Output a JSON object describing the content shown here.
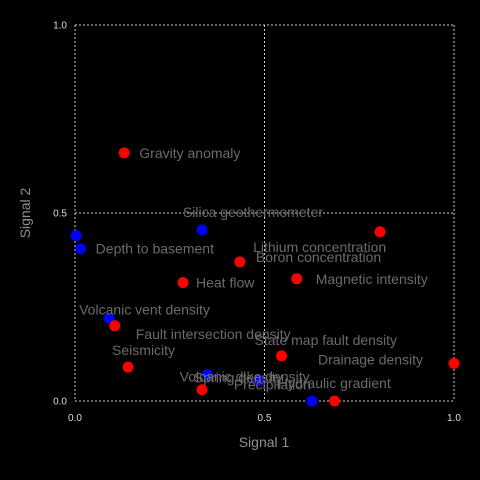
{
  "chart_data": {
    "type": "scatter",
    "title": "",
    "xlabel": "Signal 1",
    "ylabel": "Signal 2",
    "xlim": [
      0,
      1
    ],
    "ylim": [
      0,
      1
    ],
    "x_ticks": [
      "0.0",
      "0.5",
      "1.0"
    ],
    "y_ticks": [
      "0.0",
      "0.5",
      "1.0"
    ],
    "x_tick_values": [
      0,
      0.5,
      1
    ],
    "y_tick_values": [
      0,
      0.5,
      1
    ],
    "grid": true,
    "colors": {
      "red": "#ff0000",
      "blue": "#0000ff",
      "background": "#000000"
    },
    "points": [
      {
        "label": "Gravity anomaly",
        "x": 0.13,
        "y": 0.66,
        "color": "red"
      },
      {
        "label": "Silica geothermometer",
        "x": 0.335,
        "y": 0.455,
        "color": "blue"
      },
      {
        "label": "Depth to basement",
        "x": 0.015,
        "y": 0.405,
        "color": "blue"
      },
      {
        "label": "",
        "x": 0.003,
        "y": 0.44,
        "color": "blue"
      },
      {
        "label": "Lithium concentration",
        "x": 0.805,
        "y": 0.45,
        "color": "red"
      },
      {
        "label": "Boron concentration",
        "x": 0.435,
        "y": 0.37,
        "color": "red"
      },
      {
        "label": "Magnetic intensity",
        "x": 0.585,
        "y": 0.325,
        "color": "red"
      },
      {
        "label": "Heat flow",
        "x": 0.285,
        "y": 0.315,
        "color": "red"
      },
      {
        "label": "Volcanic vent density",
        "x": 0.09,
        "y": 0.22,
        "color": "blue"
      },
      {
        "label": "Fault intersection density",
        "x": 0.105,
        "y": 0.2,
        "color": "red"
      },
      {
        "label": "State map fault density",
        "x": 0.545,
        "y": 0.12,
        "color": "red"
      },
      {
        "label": "Seismicity",
        "x": 0.14,
        "y": 0.09,
        "color": "red"
      },
      {
        "label": "Drainage density",
        "x": 1.0,
        "y": 0.1,
        "color": "red"
      },
      {
        "label": "Volcanic dike density",
        "x": 0.35,
        "y": 0.07,
        "color": "blue"
      },
      {
        "label": "Precipitation",
        "x": 0.485,
        "y": 0.055,
        "color": "blue"
      },
      {
        "label": "Hydraulic gradient",
        "x": 0.625,
        "y": 0.0,
        "color": "blue"
      },
      {
        "label": "Spring density",
        "x": 0.335,
        "y": 0.03,
        "color": "red"
      },
      {
        "label": "",
        "x": 0.685,
        "y": 0.0,
        "color": "red"
      }
    ]
  }
}
